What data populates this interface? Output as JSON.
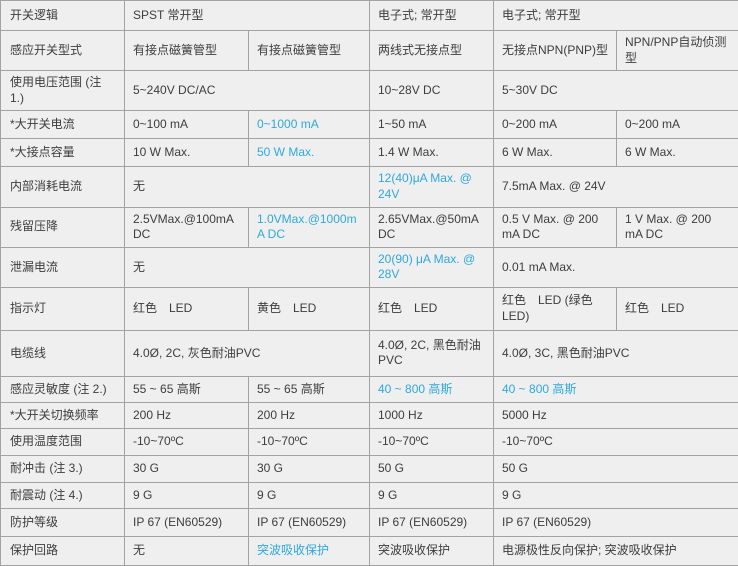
{
  "table": {
    "accent_color": "#2fa8df",
    "columns": 6,
    "rows": [
      {
        "label": "开关逻辑",
        "cells": [
          {
            "text": "SPST 常开型",
            "span": 2
          },
          {
            "text": "电子式; 常开型",
            "span": 1
          },
          {
            "text": "电子式; 常开型",
            "span": 2
          }
        ]
      },
      {
        "label": "感应开关型式",
        "cells": [
          {
            "text": "有接点磁簧管型",
            "span": 1
          },
          {
            "text": "有接点磁簧管型",
            "span": 1
          },
          {
            "text": "两线式无接点型",
            "span": 1
          },
          {
            "text": "无接点NPN(PNP)型",
            "span": 1
          },
          {
            "text": "NPN/PNP自动侦测型",
            "span": 1
          }
        ]
      },
      {
        "label": "使用电压范围 (注 1.)",
        "cells": [
          {
            "text": "5~240V DC/AC",
            "span": 2
          },
          {
            "text": "10~28V DC",
            "span": 1
          },
          {
            "text": "5~30V DC",
            "span": 2
          }
        ]
      },
      {
        "label": "*大开关电流",
        "cells": [
          {
            "text": "0~100 mA",
            "span": 1
          },
          {
            "text": "0~1000 mA",
            "span": 1,
            "blue": true
          },
          {
            "text": "1~50 mA",
            "span": 1
          },
          {
            "text": "0~200 mA",
            "span": 1
          },
          {
            "text": "0~200 mA",
            "span": 1
          }
        ]
      },
      {
        "label": "*大接点容量",
        "cells": [
          {
            "text": "10 W Max.",
            "span": 1
          },
          {
            "text": "50 W Max.",
            "span": 1,
            "blue": true
          },
          {
            "text": "1.4 W Max.",
            "span": 1
          },
          {
            "text": "6 W Max.",
            "span": 1
          },
          {
            "text": "6 W Max.",
            "span": 1
          }
        ]
      },
      {
        "label": "内部消耗电流",
        "cells": [
          {
            "text": "无",
            "span": 2
          },
          {
            "text": "12(40)μA Max. @ 24V",
            "span": 1,
            "blue": true
          },
          {
            "text": "7.5mA Max. @ 24V",
            "span": 2
          }
        ]
      },
      {
        "label": "残留压降",
        "cells": [
          {
            "text": "2.5VMax.@100mA DC",
            "span": 1
          },
          {
            "text": "1.0VMax.@1000mA DC",
            "span": 1,
            "blue": true
          },
          {
            "text": "2.65VMax.@50mA DC",
            "span": 1
          },
          {
            "text": "0.5 V Max. @ 200 mA DC",
            "span": 1
          },
          {
            "text": "1 V Max. @ 200 mA DC",
            "span": 1
          }
        ]
      },
      {
        "label": "泄漏电流",
        "cells": [
          {
            "text": "无",
            "span": 2
          },
          {
            "text": "20(90) μA Max. @ 28V",
            "span": 1,
            "blue": true
          },
          {
            "text": "0.01 mA Max.",
            "span": 2
          }
        ]
      },
      {
        "label": "指示灯",
        "cells": [
          {
            "text": "红色　LED",
            "span": 1
          },
          {
            "text": "黄色　LED",
            "span": 1
          },
          {
            "text": "红色　LED",
            "span": 1
          },
          {
            "text": "红色　LED (绿色 LED)",
            "span": 1
          },
          {
            "text": "红色　LED",
            "span": 1
          }
        ]
      },
      {
        "label": "电缆线",
        "cells": [
          {
            "text": "4.0Ø, 2C, 灰色耐油PVC",
            "span": 2
          },
          {
            "text": "4.0Ø, 2C, 黑色耐油PVC",
            "span": 1
          },
          {
            "text": "4.0Ø, 3C, 黑色耐油PVC",
            "span": 2
          }
        ]
      },
      {
        "label": "感应灵敏度 (注 2.)",
        "cells": [
          {
            "text": "55 ~ 65 高斯",
            "span": 1
          },
          {
            "text": "55 ~ 65 高斯",
            "span": 1
          },
          {
            "text": "40 ~ 800 高斯",
            "span": 1,
            "blue": true
          },
          {
            "text": "40 ~ 800 高斯",
            "span": 2,
            "blue": true
          }
        ]
      },
      {
        "label": "*大开关切换频率",
        "cells": [
          {
            "text": "200 Hz",
            "span": 1
          },
          {
            "text": "200 Hz",
            "span": 1
          },
          {
            "text": "1000 Hz",
            "span": 1
          },
          {
            "text": "5000 Hz",
            "span": 2
          }
        ]
      },
      {
        "label": "使用温度范围",
        "cells": [
          {
            "text": "-10~70ºC",
            "span": 1
          },
          {
            "text": "-10~70ºC",
            "span": 1
          },
          {
            "text": "-10~70ºC",
            "span": 1
          },
          {
            "text": "-10~70ºC",
            "span": 2
          }
        ]
      },
      {
        "label": "耐冲击 (注 3.)",
        "cells": [
          {
            "text": "30 G",
            "span": 1
          },
          {
            "text": "30 G",
            "span": 1
          },
          {
            "text": "50 G",
            "span": 1
          },
          {
            "text": "50 G",
            "span": 2
          }
        ]
      },
      {
        "label": "耐震动 (注 4.)",
        "cells": [
          {
            "text": "9 G",
            "span": 1
          },
          {
            "text": "9 G",
            "span": 1
          },
          {
            "text": "9 G",
            "span": 1
          },
          {
            "text": "9 G",
            "span": 2
          }
        ]
      },
      {
        "label": "防护等级",
        "cells": [
          {
            "text": "IP 67 (EN60529)",
            "span": 1
          },
          {
            "text": "IP 67 (EN60529)",
            "span": 1
          },
          {
            "text": "IP 67 (EN60529)",
            "span": 1
          },
          {
            "text": "IP 67 (EN60529)",
            "span": 2
          }
        ]
      },
      {
        "label": "保护回路",
        "cells": [
          {
            "text": "无",
            "span": 1
          },
          {
            "text": "突波吸收保护",
            "span": 1,
            "blue": true
          },
          {
            "text": "突波吸收保护",
            "span": 1
          },
          {
            "text": "电源极性反向保护; 突波吸收保护",
            "span": 2
          }
        ]
      }
    ]
  }
}
